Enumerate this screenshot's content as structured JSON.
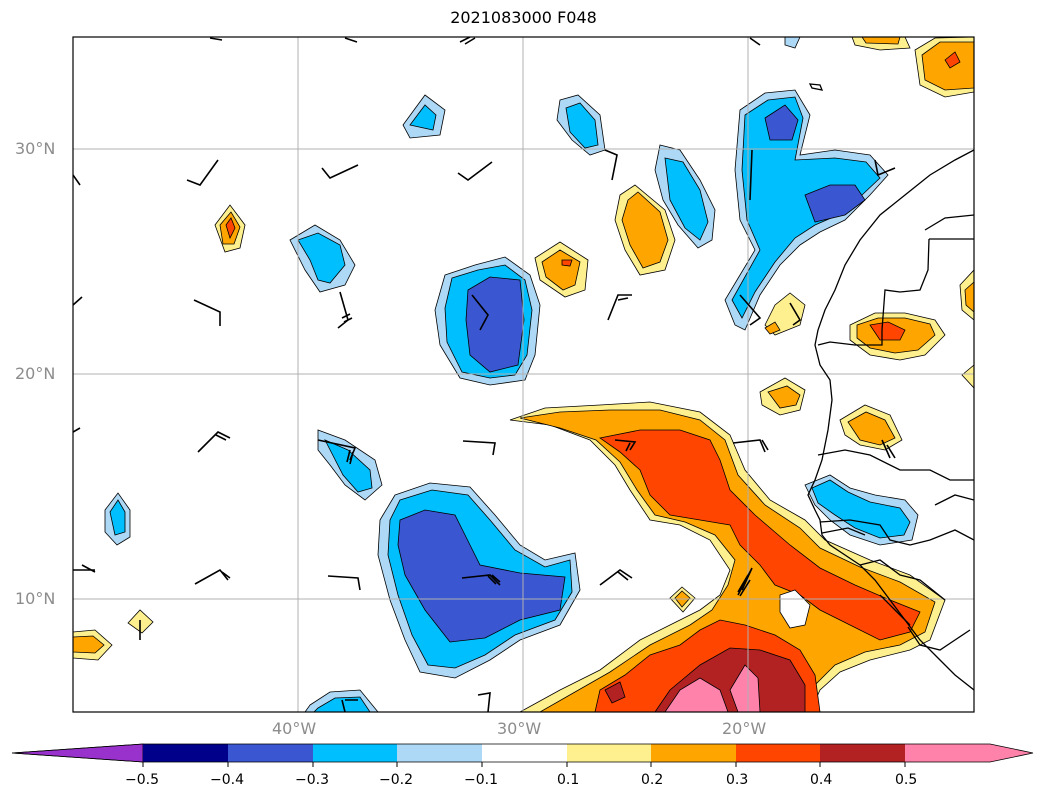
{
  "title": "2021083000 F048",
  "lat_labels": [
    "30°N",
    "20°N",
    "10°N"
  ],
  "lon_labels": [
    "40°W",
    "30°W",
    "20°W"
  ],
  "colorbar": {
    "ticks": [
      "−0.5",
      "−0.4",
      "−0.3",
      "−0.2",
      "−0.1",
      "0.1",
      "0.2",
      "0.3",
      "0.4",
      "0.5"
    ],
    "colors": [
      "#9932cc",
      "#00008b",
      "#3a56d0",
      "#00bfff",
      "#add8f6",
      "#ffffff",
      "#fff08f",
      "#ffa500",
      "#ff4500",
      "#b22222",
      "#ff82ab"
    ]
  }
}
